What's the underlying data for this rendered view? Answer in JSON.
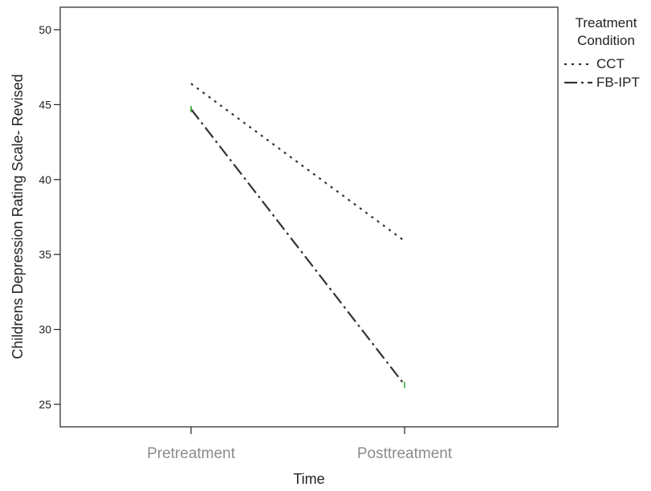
{
  "chart_data": {
    "type": "line",
    "title": "",
    "xlabel": "Time",
    "ylabel": "Childrens Depression Rating Scale- Revised",
    "categories": [
      "Pretreatment",
      "Posttreatment"
    ],
    "ylim": [
      23.5,
      51.5
    ],
    "yticks": [
      25,
      30,
      35,
      40,
      45,
      50
    ],
    "grid": false,
    "legend": {
      "title_line1": "Treatment",
      "title_line2": "Condition",
      "placement": "right"
    },
    "series": [
      {
        "name": "CCT",
        "values": [
          46.4,
          35.9
        ],
        "color": "#333333",
        "dash": "dotted"
      },
      {
        "name": "FB-IPT",
        "values": [
          44.7,
          26.3
        ],
        "color": "#333333",
        "dash": "dash-dot"
      }
    ]
  }
}
